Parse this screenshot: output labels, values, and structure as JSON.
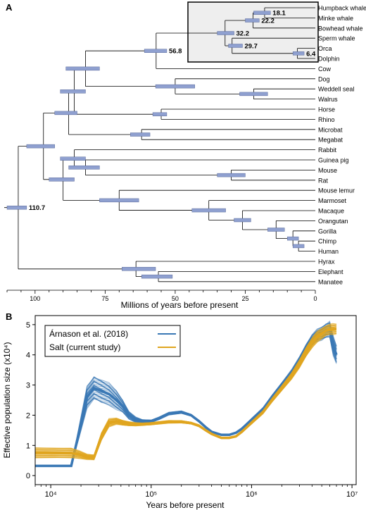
{
  "panels": {
    "a": "A",
    "b": "B"
  },
  "chart_data": [
    {
      "type": "tree",
      "panel": "A",
      "xlabel": "Millions of years before present",
      "xlim": [
        110,
        0
      ],
      "xticks": [
        100,
        75,
        50,
        25,
        0
      ],
      "bar_color": "#8fa0d0",
      "highlight_box_color": "#eeeeee",
      "taxa": [
        "Humpback whale",
        "Minke whale",
        "Bowhead whale",
        "Sperm whale",
        "Orca",
        "Dolphin",
        "Cow",
        "Dog",
        "Weddell seal",
        "Walrus",
        "Horse",
        "Rhino",
        "Microbat",
        "Megabat",
        "Rabbit",
        "Guinea pig",
        "Mouse",
        "Rat",
        "Mouse lemur",
        "Marmoset",
        "Macaque",
        "Orangutan",
        "Gorilla",
        "Chimp",
        "Human",
        "Hyrax",
        "Elephant",
        "Manatee"
      ],
      "node_labels": [
        {
          "node": "Humpback whale + Minke whale",
          "age": "18.1"
        },
        {
          "node": "Baleen whales",
          "age": "22.2"
        },
        {
          "node": "Whales",
          "age": "32.2"
        },
        {
          "node": "Toothed whales",
          "age": "29.7"
        },
        {
          "node": "Orca + Dolphin",
          "age": "6.4"
        },
        {
          "node": "Whales + Cow",
          "age": "56.8"
        },
        {
          "node": "Root",
          "age": "110.7"
        }
      ]
    },
    {
      "type": "line",
      "panel": "B",
      "xlabel": "Years before present",
      "ylabel": "Effective population size (x10⁴)",
      "xscale": "log",
      "xlim": [
        7000,
        11000000
      ],
      "ylim": [
        -0.3,
        5.3
      ],
      "xticks": [
        "10⁴",
        "10⁵",
        "10⁶",
        "10⁷"
      ],
      "yticks": [
        "0",
        "1",
        "2",
        "3",
        "4",
        "5"
      ],
      "legend": "top-left",
      "series": [
        {
          "name": "Árnason et al. (2018)",
          "color": "#3a78b5",
          "x": [
            7000,
            16000,
            19000,
            23000,
            27000,
            32000,
            38000,
            45000,
            52000,
            60000,
            70000,
            82000,
            100000,
            120000,
            150000,
            200000,
            250000,
            300000,
            350000,
            400000,
            500000,
            600000,
            700000,
            800000,
            1000000,
            1300000,
            1600000,
            2000000,
            2500000,
            3000000,
            3500000,
            4000000,
            4500000,
            5000000,
            5500000,
            6000000,
            6500000,
            7000000
          ],
          "values": [
            0.32,
            0.32,
            1.4,
            2.6,
            2.9,
            2.8,
            2.7,
            2.5,
            2.3,
            2.0,
            1.85,
            1.8,
            1.8,
            1.9,
            2.05,
            2.1,
            2.0,
            1.8,
            1.6,
            1.45,
            1.35,
            1.35,
            1.42,
            1.55,
            1.85,
            2.2,
            2.6,
            3.0,
            3.4,
            3.8,
            4.2,
            4.5,
            4.65,
            4.7,
            4.8,
            4.85,
            4.3,
            4.0
          ],
          "spread": [
            0,
            0,
            0.2,
            0.4,
            0.45,
            0.45,
            0.4,
            0.35,
            0.25,
            0.15,
            0.1,
            0.06,
            0.05,
            0.05,
            0.05,
            0.05,
            0.04,
            0.04,
            0.03,
            0.03,
            0.03,
            0.03,
            0.03,
            0.04,
            0.05,
            0.06,
            0.08,
            0.1,
            0.12,
            0.15,
            0.18,
            0.2,
            0.22,
            0.25,
            0.28,
            0.3,
            0.35,
            0.35
          ]
        },
        {
          "name": "Salt (current study)",
          "color": "#e0a51f",
          "x": [
            7000,
            16000,
            19000,
            23000,
            27000,
            32000,
            38000,
            45000,
            52000,
            60000,
            70000,
            82000,
            100000,
            120000,
            150000,
            200000,
            250000,
            300000,
            350000,
            400000,
            500000,
            600000,
            700000,
            800000,
            1000000,
            1300000,
            1600000,
            2000000,
            2500000,
            3000000,
            3500000,
            4000000,
            4500000,
            5000000,
            5500000,
            6000000,
            6500000,
            7000000
          ],
          "values": [
            0.75,
            0.75,
            0.7,
            0.62,
            0.6,
            1.3,
            1.75,
            1.8,
            1.75,
            1.72,
            1.7,
            1.7,
            1.72,
            1.75,
            1.78,
            1.78,
            1.74,
            1.65,
            1.5,
            1.38,
            1.25,
            1.25,
            1.3,
            1.45,
            1.75,
            2.1,
            2.5,
            2.9,
            3.3,
            3.7,
            4.1,
            4.4,
            4.6,
            4.7,
            4.8,
            4.85,
            4.85,
            4.85
          ],
          "spread": [
            0.2,
            0.2,
            0.15,
            0.1,
            0.1,
            0.15,
            0.15,
            0.12,
            0.1,
            0.08,
            0.06,
            0.05,
            0.05,
            0.05,
            0.05,
            0.05,
            0.04,
            0.04,
            0.03,
            0.03,
            0.03,
            0.03,
            0.03,
            0.04,
            0.05,
            0.06,
            0.08,
            0.1,
            0.12,
            0.15,
            0.18,
            0.2,
            0.2,
            0.2,
            0.2,
            0.2,
            0.2,
            0.2
          ]
        }
      ]
    }
  ]
}
